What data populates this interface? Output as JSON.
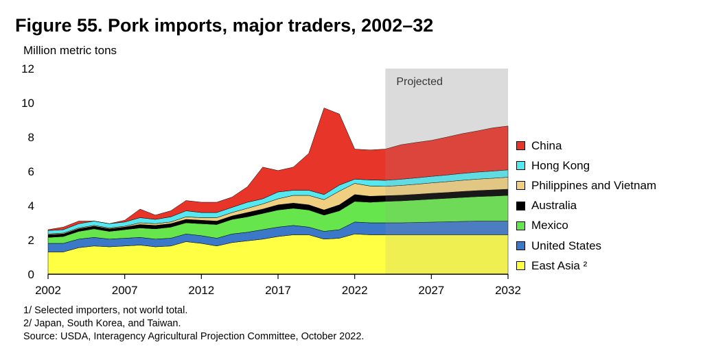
{
  "title": "Figure 55.  Pork imports, major traders, 2002–32",
  "chart_data": {
    "type": "area",
    "stacked": true,
    "ylabel": "Million metric tons",
    "ylim": [
      0,
      12
    ],
    "yticks": [
      0,
      2,
      4,
      6,
      8,
      10,
      12
    ],
    "xlim": [
      2002,
      2032
    ],
    "xticks": [
      2002,
      2007,
      2012,
      2017,
      2022,
      2027,
      2032
    ],
    "projected_from": 2024,
    "projected_label": "Projected",
    "legend_position": "right",
    "x": [
      2002,
      2003,
      2004,
      2005,
      2006,
      2007,
      2008,
      2009,
      2010,
      2011,
      2012,
      2013,
      2014,
      2015,
      2016,
      2017,
      2018,
      2019,
      2020,
      2021,
      2022,
      2023,
      2024,
      2025,
      2026,
      2027,
      2028,
      2029,
      2030,
      2031,
      2032
    ],
    "series": [
      {
        "name": "East Asia ²",
        "color": "#ffff44",
        "values": [
          1.3,
          1.3,
          1.55,
          1.65,
          1.6,
          1.65,
          1.7,
          1.6,
          1.65,
          1.9,
          1.8,
          1.65,
          1.85,
          1.95,
          2.05,
          2.2,
          2.3,
          2.3,
          2.05,
          2.1,
          2.35,
          2.3,
          2.3,
          2.3,
          2.3,
          2.3,
          2.3,
          2.3,
          2.3,
          2.3,
          2.3
        ]
      },
      {
        "name": "United States",
        "color": "#3c78c8",
        "values": [
          0.5,
          0.5,
          0.5,
          0.5,
          0.45,
          0.45,
          0.45,
          0.45,
          0.45,
          0.45,
          0.45,
          0.45,
          0.5,
          0.5,
          0.55,
          0.55,
          0.55,
          0.45,
          0.45,
          0.5,
          0.7,
          0.7,
          0.7,
          0.7,
          0.72,
          0.74,
          0.76,
          0.78,
          0.8,
          0.8,
          0.8
        ]
      },
      {
        "name": "Mexico",
        "color": "#66e64c",
        "values": [
          0.35,
          0.4,
          0.45,
          0.5,
          0.45,
          0.5,
          0.55,
          0.6,
          0.65,
          0.65,
          0.7,
          0.8,
          0.85,
          0.9,
          0.95,
          1.0,
          1.0,
          1.0,
          0.95,
          1.1,
          1.2,
          1.2,
          1.25,
          1.28,
          1.31,
          1.34,
          1.37,
          1.4,
          1.43,
          1.46,
          1.5
        ]
      },
      {
        "name": "Australia",
        "color": "#000000",
        "values": [
          0.15,
          0.15,
          0.15,
          0.15,
          0.15,
          0.15,
          0.2,
          0.2,
          0.2,
          0.2,
          0.2,
          0.2,
          0.2,
          0.25,
          0.25,
          0.3,
          0.3,
          0.3,
          0.3,
          0.35,
          0.4,
          0.35,
          0.33,
          0.33,
          0.33,
          0.34,
          0.34,
          0.35,
          0.35,
          0.36,
          0.36
        ]
      },
      {
        "name": "Philippines and Vietnam",
        "color": "#f0d080",
        "values": [
          0.05,
          0.05,
          0.05,
          0.05,
          0.05,
          0.05,
          0.1,
          0.1,
          0.1,
          0.15,
          0.15,
          0.2,
          0.2,
          0.25,
          0.3,
          0.35,
          0.45,
          0.55,
          0.6,
          0.8,
          0.65,
          0.6,
          0.55,
          0.57,
          0.59,
          0.61,
          0.63,
          0.65,
          0.67,
          0.68,
          0.7
        ]
      },
      {
        "name": "Hong Kong",
        "color": "#55e8f0",
        "values": [
          0.2,
          0.2,
          0.25,
          0.25,
          0.25,
          0.25,
          0.3,
          0.25,
          0.3,
          0.35,
          0.3,
          0.3,
          0.3,
          0.35,
          0.3,
          0.4,
          0.3,
          0.3,
          0.3,
          0.35,
          0.25,
          0.35,
          0.35,
          0.36,
          0.37,
          0.38,
          0.39,
          0.4,
          0.41,
          0.42,
          0.43
        ]
      },
      {
        "name": "China",
        "color": "#e8352a",
        "values": [
          0.05,
          0.15,
          0.15,
          0.0,
          0.0,
          0.1,
          0.5,
          0.25,
          0.35,
          0.6,
          0.6,
          0.6,
          0.6,
          0.9,
          1.85,
          1.25,
          1.35,
          2.15,
          5.05,
          4.15,
          1.75,
          1.75,
          1.82,
          2.01,
          2.07,
          2.1,
          2.21,
          2.32,
          2.4,
          2.52,
          2.56
        ]
      }
    ]
  },
  "notes": [
    "1/ Selected importers, not world total.",
    "2/ Japan, South Korea, and Taiwan.",
    "Source: USDA, Interagency Agricultural Projection Committee, October 2022."
  ]
}
